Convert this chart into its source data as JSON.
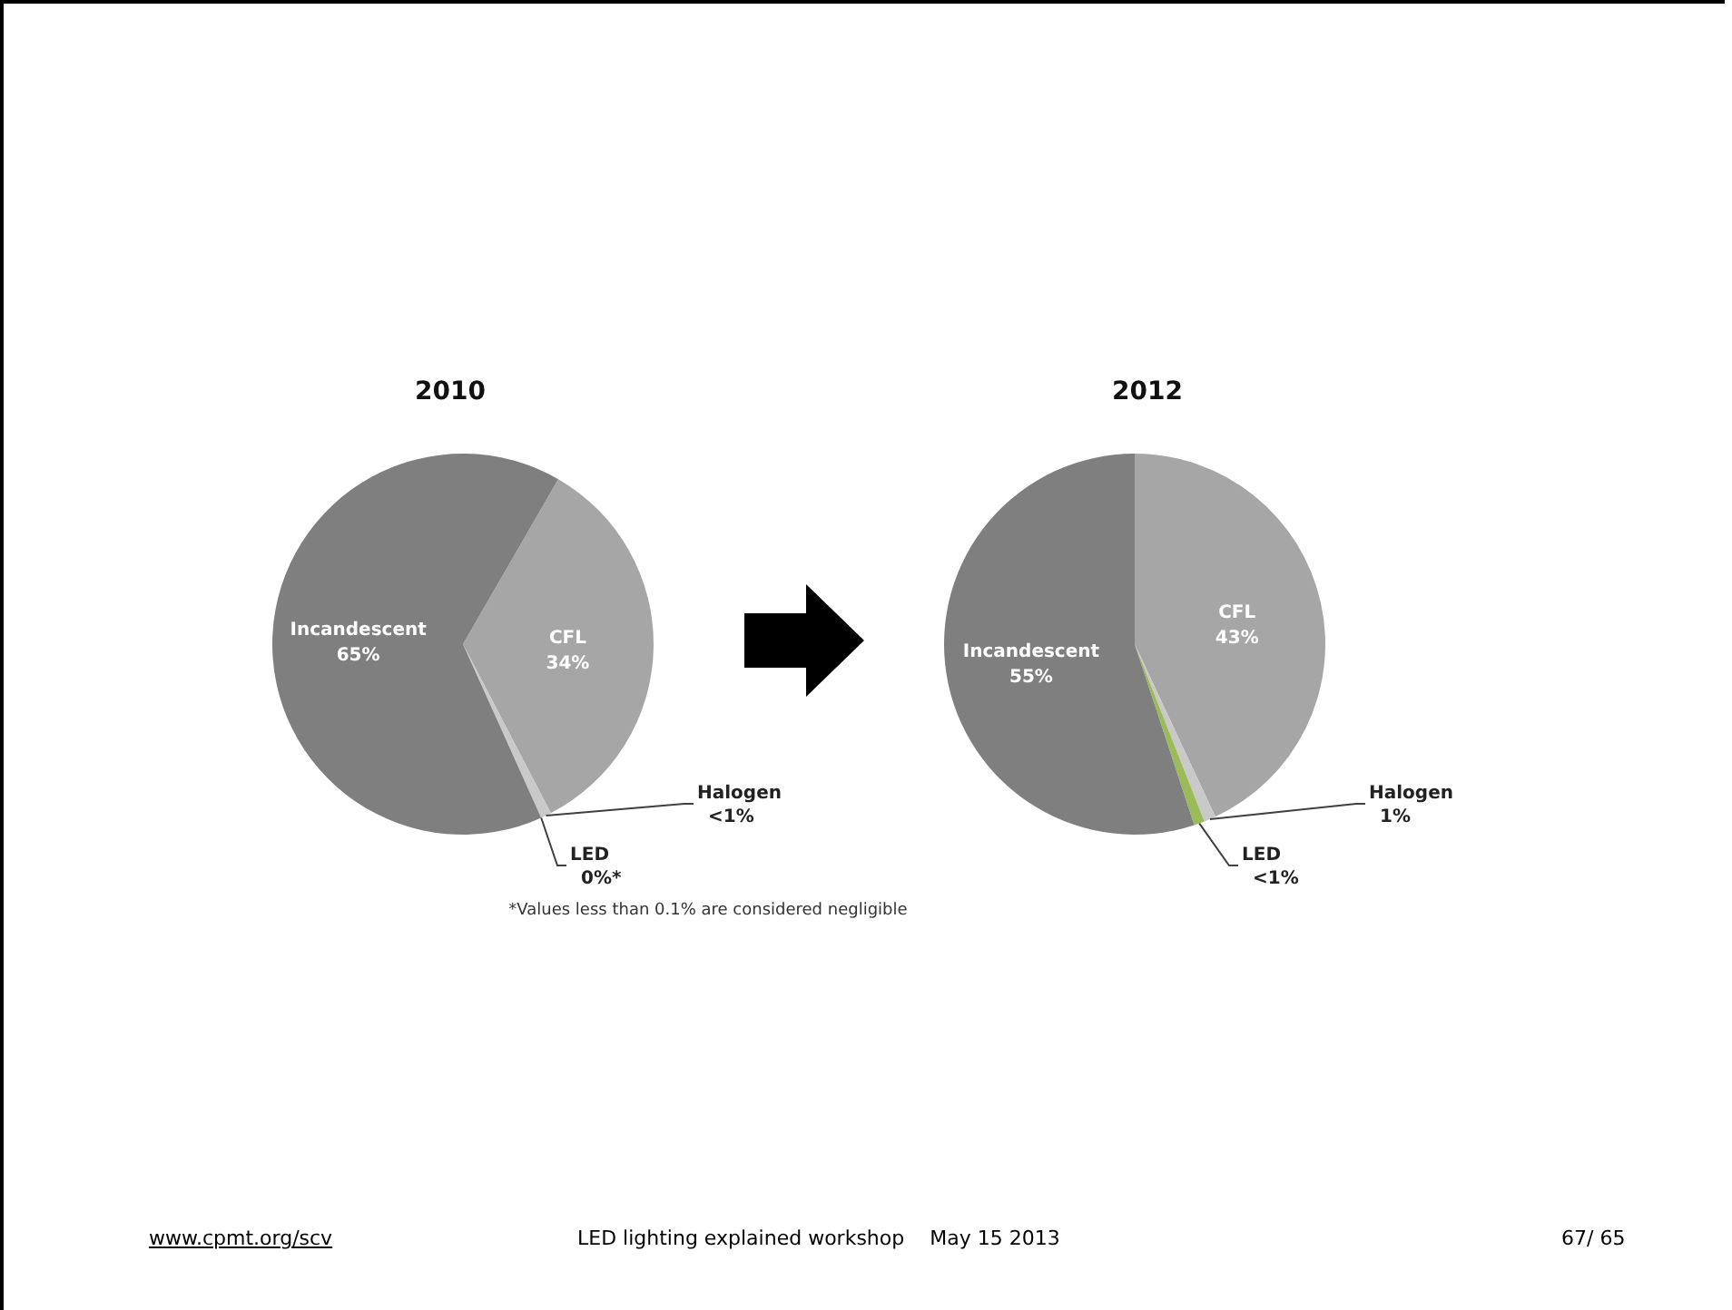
{
  "chart_data": [
    {
      "type": "pie",
      "title": "2010",
      "categories": [
        "CFL",
        "Halogen",
        "LED",
        "Incandescent"
      ],
      "values": [
        34,
        0.9,
        0,
        65
      ],
      "value_labels": [
        "34%",
        "<1%",
        "0%*",
        "65%"
      ],
      "colors": [
        "#a6a6a6",
        "#c9c9c9",
        "#9bbb59",
        "#7f7f7f"
      ],
      "annotations": [
        "*Values less than 0.1% are considered negligible"
      ]
    },
    {
      "type": "pie",
      "title": "2012",
      "categories": [
        "CFL",
        "Halogen",
        "LED",
        "Incandescent"
      ],
      "values": [
        43,
        1,
        0.9,
        55
      ],
      "value_labels": [
        "43%",
        "1%",
        "<1%",
        "55%"
      ],
      "colors": [
        "#a6a6a6",
        "#c9c9c9",
        "#9bbb59",
        "#7f7f7f"
      ],
      "annotations": [
        "www.cpmt.org/scv",
        "LED lighting explained workshop    May 15 2013",
        "67/ 65"
      ]
    }
  ]
}
